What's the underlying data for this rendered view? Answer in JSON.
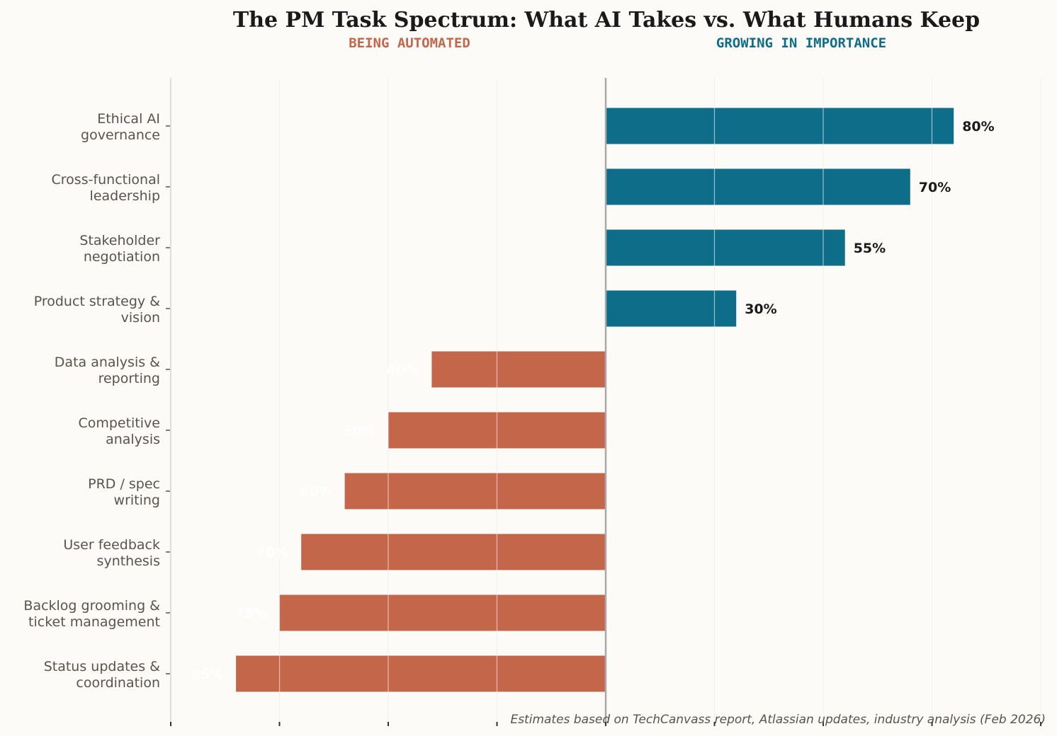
{
  "chart_data": {
    "type": "bar",
    "orientation": "horizontal-diverging",
    "title": "The PM Task Spectrum: What AI Takes vs. What Humans Keep",
    "left_label": "BEING AUTOMATED",
    "right_label": "GROWING IN IMPORTANCE",
    "footnote": "Estimates based on TechCanvass report, Atlassian updates, industry analysis (Feb 2026)",
    "xlim": [
      -100,
      100
    ],
    "xticks": [
      -100,
      -75,
      -50,
      -25,
      0,
      25,
      50,
      75,
      100
    ],
    "grid": true,
    "categories": [
      "Ethical AI\ngovernance",
      "Cross-functional\nleadership",
      "Stakeholder\nnegotiation",
      "Product strategy &\nvision",
      "Data analysis &\nreporting",
      "Competitive\nanalysis",
      "PRD / spec\nwriting",
      "User feedback\nsynthesis",
      "Backlog grooming &\nticket management",
      "Status updates &\ncoordination"
    ],
    "values": [
      80,
      70,
      55,
      30,
      -40,
      -50,
      -60,
      -70,
      -75,
      -85
    ],
    "value_labels": [
      "80%",
      "70%",
      "55%",
      "30%",
      "40%",
      "50%",
      "60%",
      "70%",
      "75%",
      "85%"
    ],
    "colors": {
      "automated": "#c4664a",
      "growing": "#0e6e8a",
      "background": "#fcfbf8"
    }
  }
}
